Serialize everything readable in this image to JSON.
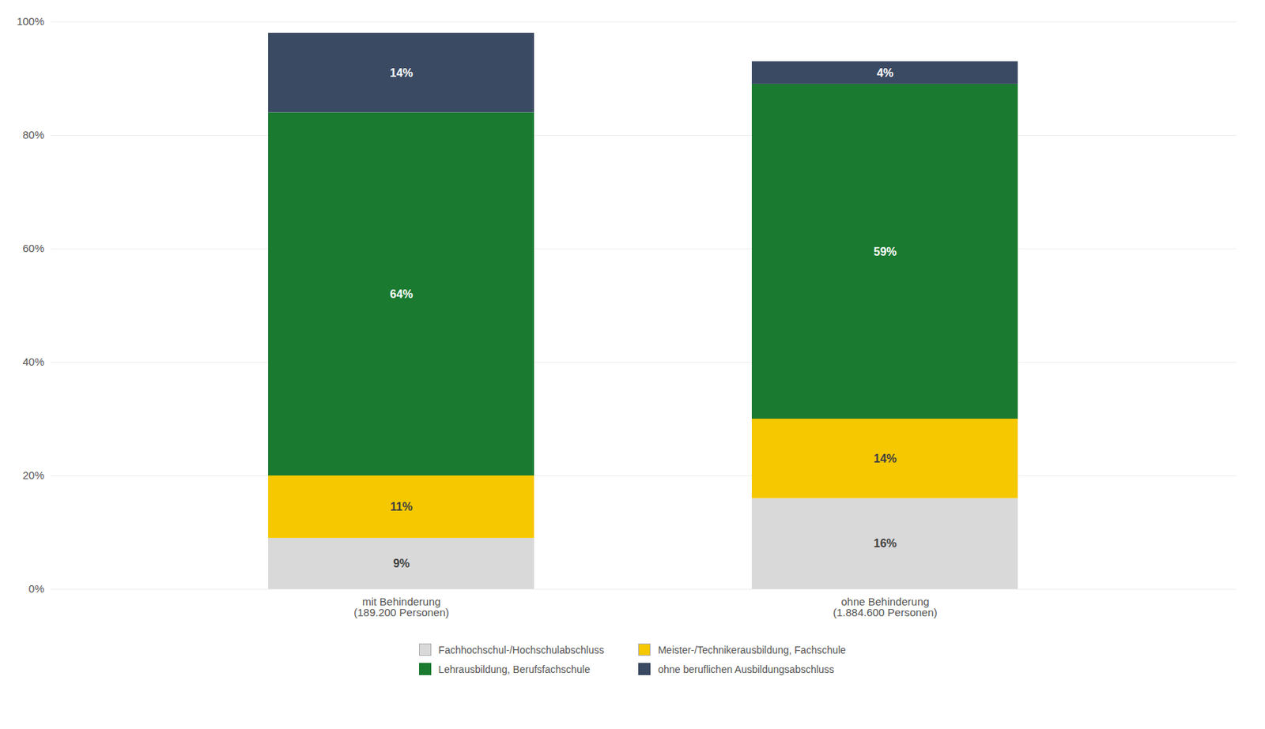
{
  "chart_data": {
    "type": "bar",
    "stacked": true,
    "categories": [
      "mit Behinderung\n(189.200 Personen)",
      "ohne Behinderung\n(1.884.600 Personen)"
    ],
    "series": [
      {
        "name": "Fachhochschul-/Hochschulabschluss",
        "color": "#d9d9d9",
        "values": [
          9,
          16
        ],
        "value_labels": [
          "9%",
          "16%"
        ]
      },
      {
        "name": "Meister-/Technikerausbildung, Fachschule",
        "color": "#f5c800",
        "values": [
          11,
          14
        ],
        "value_labels": [
          "11%",
          "14%"
        ]
      },
      {
        "name": "Lehrausbildung, Berufsfachschule",
        "color": "#1a7a30",
        "values": [
          64,
          59
        ],
        "value_labels": [
          "64%",
          "59%"
        ]
      },
      {
        "name": "ohne beruflichen Ausbildungsabschluss",
        "color": "#3b4a63",
        "values": [
          14,
          4
        ],
        "value_labels": [
          "14%",
          "4%"
        ]
      }
    ],
    "ylim": [
      0,
      100
    ],
    "yticks": [
      {
        "value": 0,
        "label": "0%"
      },
      {
        "value": 20,
        "label": "20%"
      },
      {
        "value": 40,
        "label": "40%"
      },
      {
        "value": 60,
        "label": "60%"
      },
      {
        "value": 80,
        "label": "80%"
      },
      {
        "value": 100,
        "label": "100%"
      }
    ],
    "grid": true,
    "data_labels": true,
    "legend": "bottom"
  }
}
